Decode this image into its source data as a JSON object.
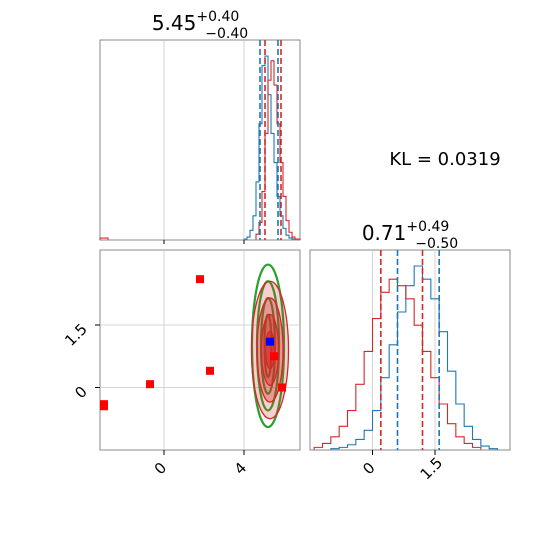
{
  "chart_data": [
    {
      "type": "histogram",
      "panel": "top-left",
      "title_value": "5.45",
      "title_plus": "+0.40",
      "title_minus": "−0.40",
      "xlim": [
        -3.2,
        6.8
      ],
      "x_ticks": [
        0,
        4
      ],
      "grid": true,
      "series": [
        {
          "color": "#1f77b4",
          "bin_edges": [
            4.0,
            4.15,
            4.3,
            4.45,
            4.6,
            4.75,
            4.9,
            5.05,
            5.2,
            5.35,
            5.5,
            5.65,
            5.8,
            5.95,
            6.1,
            6.25,
            6.4,
            6.55
          ],
          "counts": [
            1,
            3,
            10,
            25,
            60,
            120,
            180,
            190,
            150,
            110,
            80,
            45,
            25,
            12,
            5,
            2,
            1
          ],
          "quantile_lines": [
            4.8,
            5.7
          ]
        },
        {
          "color": "#d62728",
          "bin_edges": [
            -3.2,
            -2.8,
            4.6,
            4.75,
            4.9,
            5.05,
            5.2,
            5.35,
            5.5,
            5.65,
            5.8,
            5.95,
            6.1,
            6.25,
            6.4,
            6.55,
            6.8
          ],
          "counts": [
            2,
            0,
            6,
            18,
            50,
            110,
            165,
            185,
            160,
            120,
            80,
            45,
            20,
            8,
            3,
            1
          ],
          "quantile_lines": [
            5.05,
            5.85
          ]
        }
      ]
    },
    {
      "type": "scatter-contour",
      "panel": "bottom-left",
      "xlim": [
        -3.2,
        6.8
      ],
      "ylim": [
        -1.5,
        3.3
      ],
      "x_ticks": [
        0,
        4
      ],
      "y_ticks": [
        0.0,
        1.5
      ],
      "grid": true,
      "red_points": [
        [
          -3.0,
          -0.4
        ],
        [
          -3.0,
          -0.45
        ],
        [
          -0.7,
          0.08
        ],
        [
          1.8,
          2.6
        ],
        [
          2.3,
          0.4
        ],
        [
          5.5,
          0.75
        ],
        [
          5.9,
          0.0
        ]
      ],
      "blue_points": [
        [
          5.3,
          1.1
        ]
      ],
      "contours": [
        {
          "color": "#2ca02c",
          "cx": 5.2,
          "cy": 1.0,
          "levels": [
            [
              1.6,
              1.95
            ],
            [
              1.1,
              1.55
            ],
            [
              0.7,
              1.15
            ],
            [
              0.35,
              0.75
            ]
          ]
        },
        {
          "color": "#d62728",
          "cx": 5.3,
          "cy": 0.9,
          "levels": [
            [
              1.85,
              1.65
            ],
            [
              1.3,
              1.25
            ],
            [
              0.85,
              0.85
            ],
            [
              0.45,
              0.45
            ]
          ]
        }
      ]
    },
    {
      "type": "histogram",
      "panel": "bottom-right",
      "title_value": "0.71",
      "title_plus": "+0.49",
      "title_minus": "−0.50",
      "xlim": [
        -1.5,
        3.3
      ],
      "x_ticks": [
        0.0,
        1.5
      ],
      "grid": true,
      "series": [
        {
          "color": "#1f77b4",
          "bin_edges": [
            -1.0,
            -0.8,
            -0.6,
            -0.4,
            -0.2,
            0.0,
            0.2,
            0.4,
            0.6,
            0.8,
            1.0,
            1.2,
            1.4,
            1.6,
            1.8,
            2.0,
            2.2,
            2.4,
            2.6,
            2.8,
            3.0
          ],
          "counts": [
            1,
            2,
            4,
            8,
            15,
            30,
            55,
            80,
            105,
            125,
            140,
            130,
            115,
            90,
            60,
            35,
            18,
            8,
            3,
            1
          ],
          "quantile_lines": [
            0.6,
            1.6
          ]
        },
        {
          "color": "#d62728",
          "bin_edges": [
            -1.4,
            -1.2,
            -1.0,
            -0.8,
            -0.6,
            -0.4,
            -0.2,
            0.0,
            0.2,
            0.4,
            0.6,
            0.8,
            1.0,
            1.2,
            1.4,
            1.6,
            1.8,
            2.0,
            2.2,
            2.4,
            2.6
          ],
          "counts": [
            2,
            5,
            10,
            18,
            30,
            50,
            75,
            100,
            120,
            130,
            125,
            115,
            95,
            75,
            55,
            35,
            20,
            10,
            5,
            2
          ],
          "quantile_lines": [
            0.2,
            1.2
          ]
        }
      ]
    }
  ],
  "kl_label": "KL = 0.0319"
}
